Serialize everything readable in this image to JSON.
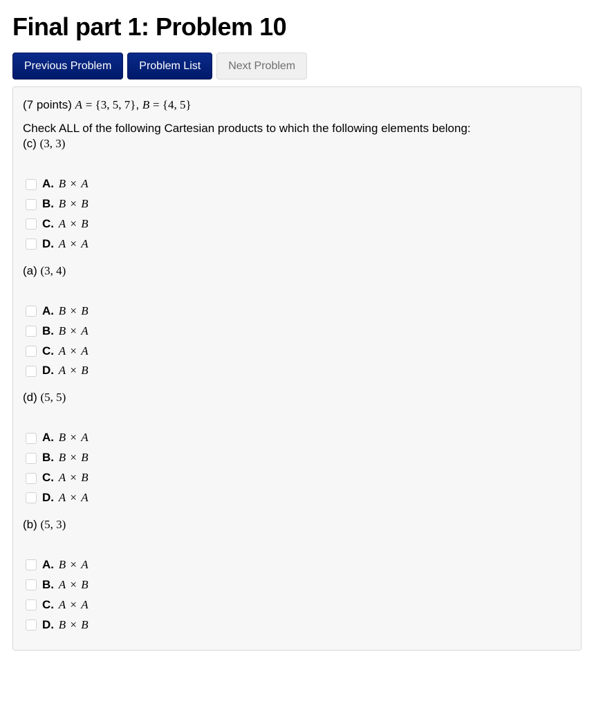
{
  "title": "Final part 1: Problem 10",
  "nav": {
    "prev": "Previous Problem",
    "list": "Problem List",
    "next": "Next Problem"
  },
  "colors": {
    "button_primary_bg_top": "#0a2a8a",
    "button_primary_bg_bottom": "#001a6a",
    "button_default_bg": "#f0f0f0",
    "panel_bg": "#f7f7f7",
    "panel_border": "#d8d8d8",
    "checkbox_border": "#d2d2d2"
  },
  "problem": {
    "points_prefix": "(7 points) ",
    "sets_html": "<span class=\"math-it\">A</span> <span class=\"math-rm\">= {3, 5, 7}</span>, <span class=\"math-it\">B</span> <span class=\"math-rm\">= {4, 5}</span>",
    "instruction": "Check ALL of the following Cartesian products to which the following elements belong:",
    "subparts": [
      {
        "label": "(c)",
        "element": "(3, 3)",
        "options": [
          {
            "letter": "A.",
            "lhs": "B",
            "rhs": "A"
          },
          {
            "letter": "B.",
            "lhs": "B",
            "rhs": "B"
          },
          {
            "letter": "C.",
            "lhs": "A",
            "rhs": "B"
          },
          {
            "letter": "D.",
            "lhs": "A",
            "rhs": "A"
          }
        ]
      },
      {
        "label": "(a)",
        "element": "(3, 4)",
        "options": [
          {
            "letter": "A.",
            "lhs": "B",
            "rhs": "B"
          },
          {
            "letter": "B.",
            "lhs": "B",
            "rhs": "A"
          },
          {
            "letter": "C.",
            "lhs": "A",
            "rhs": "A"
          },
          {
            "letter": "D.",
            "lhs": "A",
            "rhs": "B"
          }
        ]
      },
      {
        "label": "(d)",
        "element": "(5, 5)",
        "options": [
          {
            "letter": "A.",
            "lhs": "B",
            "rhs": "A"
          },
          {
            "letter": "B.",
            "lhs": "B",
            "rhs": "B"
          },
          {
            "letter": "C.",
            "lhs": "A",
            "rhs": "B"
          },
          {
            "letter": "D.",
            "lhs": "A",
            "rhs": "A"
          }
        ]
      },
      {
        "label": "(b)",
        "element": "(5, 3)",
        "options": [
          {
            "letter": "A.",
            "lhs": "B",
            "rhs": "A"
          },
          {
            "letter": "B.",
            "lhs": "A",
            "rhs": "B"
          },
          {
            "letter": "C.",
            "lhs": "A",
            "rhs": "A"
          },
          {
            "letter": "D.",
            "lhs": "B",
            "rhs": "B"
          }
        ]
      }
    ]
  }
}
